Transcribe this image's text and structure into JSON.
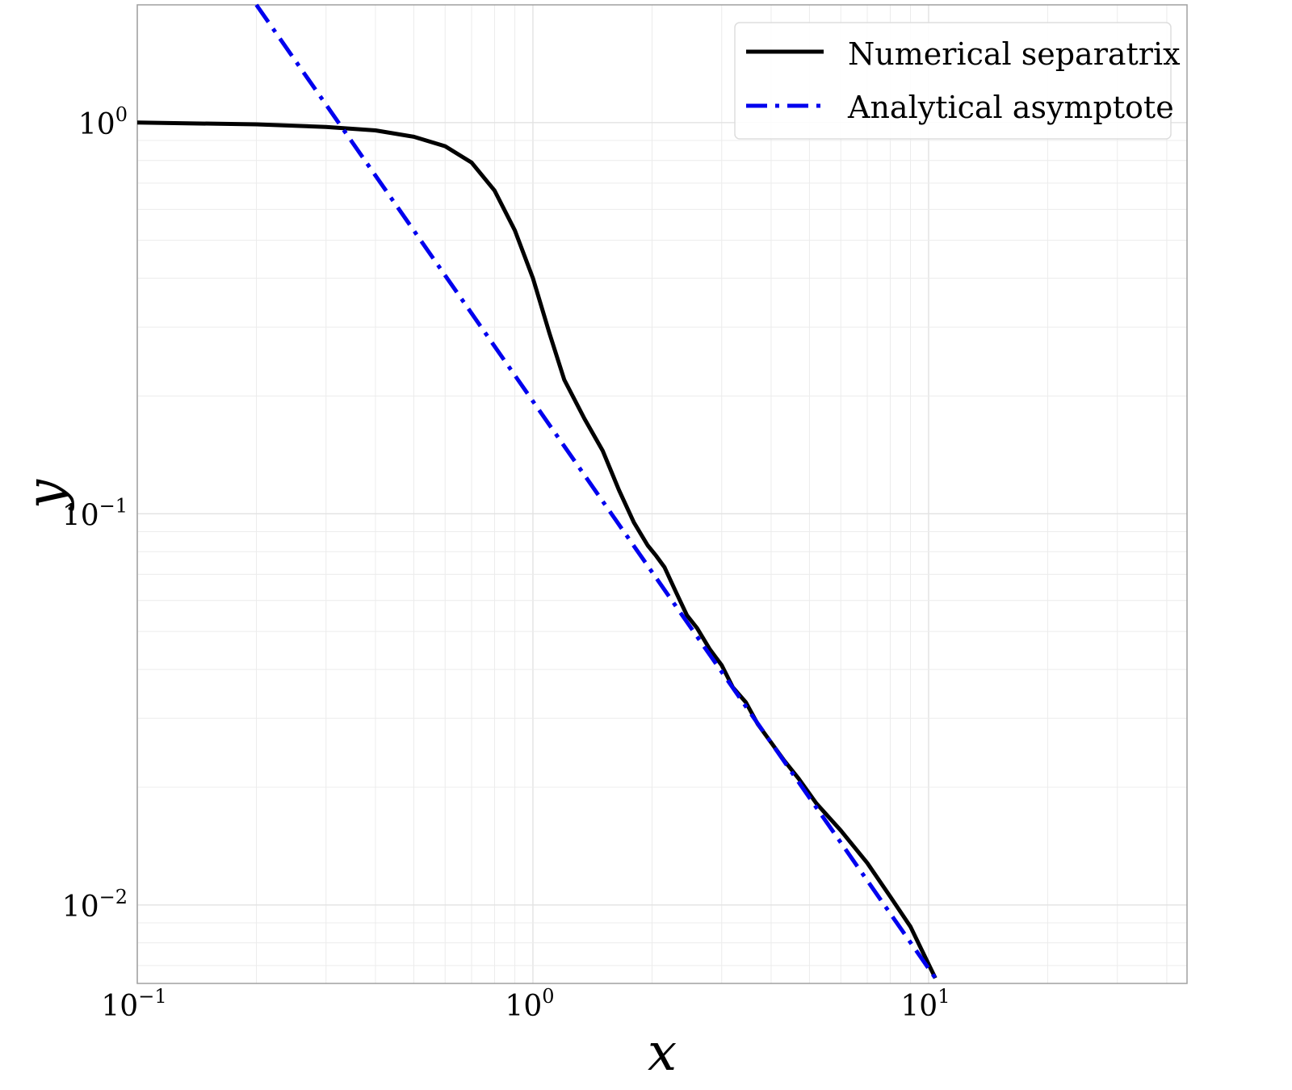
{
  "chart_data": {
    "type": "line",
    "xlabel": "x",
    "ylabel": "y",
    "xscale": "log",
    "yscale": "log",
    "xlim": [
      0.1,
      45
    ],
    "ylim": [
      0.0063,
      2.0
    ],
    "grid": true,
    "legend_position": "top-right",
    "x_ticks": [
      {
        "value": 0.1,
        "base": "10",
        "exp": "−1"
      },
      {
        "value": 1,
        "base": "10",
        "exp": "0"
      },
      {
        "value": 10,
        "base": "10",
        "exp": "1"
      }
    ],
    "y_ticks": [
      {
        "value": 1,
        "base": "10",
        "exp": "0"
      },
      {
        "value": 0.1,
        "base": "10",
        "exp": "−1"
      },
      {
        "value": 0.01,
        "base": "10",
        "exp": "−2"
      }
    ],
    "series": [
      {
        "name": "Numerical separatrix",
        "color": "#000000",
        "style": "solid",
        "points": [
          [
            0.1,
            1.0
          ],
          [
            0.2,
            0.99
          ],
          [
            0.3,
            0.975
          ],
          [
            0.4,
            0.955
          ],
          [
            0.5,
            0.92
          ],
          [
            0.6,
            0.87
          ],
          [
            0.7,
            0.79
          ],
          [
            0.8,
            0.67
          ],
          [
            0.9,
            0.53
          ],
          [
            1.0,
            0.4
          ],
          [
            1.1,
            0.29
          ],
          [
            1.2,
            0.22
          ],
          [
            1.35,
            0.175
          ],
          [
            1.5,
            0.145
          ],
          [
            1.65,
            0.115
          ],
          [
            1.8,
            0.095
          ],
          [
            1.95,
            0.083
          ],
          [
            2.05,
            0.078
          ],
          [
            2.15,
            0.073
          ],
          [
            2.3,
            0.063
          ],
          [
            2.45,
            0.055
          ],
          [
            2.6,
            0.051
          ],
          [
            2.8,
            0.045
          ],
          [
            3.0,
            0.041
          ],
          [
            3.2,
            0.036
          ],
          [
            3.45,
            0.033
          ],
          [
            3.7,
            0.029
          ],
          [
            4.0,
            0.026
          ],
          [
            4.3,
            0.0235
          ],
          [
            4.7,
            0.021
          ],
          [
            5.2,
            0.0182
          ],
          [
            6.0,
            0.0155
          ],
          [
            7.0,
            0.0128
          ],
          [
            8.0,
            0.0105
          ],
          [
            9.0,
            0.0088
          ],
          [
            10.4,
            0.0065
          ]
        ]
      },
      {
        "name": "Analytical asymptote",
        "color": "#0000ee",
        "style": "dashdot",
        "points": [
          [
            0.2,
            2.0
          ],
          [
            10.4,
            0.0065
          ]
        ]
      }
    ]
  }
}
